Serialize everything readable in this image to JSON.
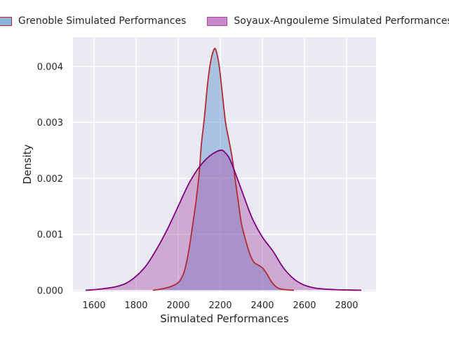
{
  "chart_data": {
    "type": "area",
    "xlabel": "Simulated Performances",
    "ylabel": "Density",
    "xlim": [
      1500,
      2940
    ],
    "ylim": [
      -2e-05,
      0.00452
    ],
    "x_ticks": [
      1600,
      1800,
      2000,
      2200,
      2400,
      2600,
      2800
    ],
    "y_ticks": [
      0.0,
      0.001,
      0.002,
      0.003,
      0.004
    ],
    "y_tick_labels": [
      "0.000",
      "0.001",
      "0.002",
      "0.003",
      "0.004"
    ],
    "grid": true,
    "legend_position": "top",
    "series": [
      {
        "name": "Grenoble Simulated Performances",
        "fill_color": "#4c84c8",
        "line_color": "#b22a33",
        "fill_opacity": 0.4,
        "points": [
          [
            1880,
            0.0
          ],
          [
            1900,
            1e-05
          ],
          [
            1930,
            3e-05
          ],
          [
            1960,
            6e-05
          ],
          [
            1990,
            0.00011
          ],
          [
            2010,
            0.00018
          ],
          [
            2030,
            0.00035
          ],
          [
            2050,
            0.0007
          ],
          [
            2070,
            0.0012
          ],
          [
            2085,
            0.0016
          ],
          [
            2100,
            0.0021
          ],
          [
            2110,
            0.0026
          ],
          [
            2125,
            0.0031
          ],
          [
            2140,
            0.0037
          ],
          [
            2155,
            0.0041
          ],
          [
            2170,
            0.0043
          ],
          [
            2180,
            0.00428
          ],
          [
            2195,
            0.004
          ],
          [
            2210,
            0.0035
          ],
          [
            2225,
            0.003
          ],
          [
            2240,
            0.0027
          ],
          [
            2255,
            0.0024
          ],
          [
            2270,
            0.002
          ],
          [
            2285,
            0.0016
          ],
          [
            2300,
            0.0012
          ],
          [
            2320,
            0.0009
          ],
          [
            2340,
            0.00065
          ],
          [
            2360,
            0.0005
          ],
          [
            2380,
            0.00045
          ],
          [
            2400,
            0.0004
          ],
          [
            2420,
            0.0003
          ],
          [
            2440,
            0.00017
          ],
          [
            2460,
            8e-05
          ],
          [
            2480,
            3e-05
          ],
          [
            2510,
            1e-05
          ],
          [
            2550,
            0.0
          ]
        ]
      },
      {
        "name": "Soyaux-Angouleme Simulated Performances",
        "fill_color": "#a64ca6",
        "line_color": "#800080",
        "fill_opacity": 0.4,
        "points": [
          [
            1560,
            0.0
          ],
          [
            1600,
            1e-05
          ],
          [
            1650,
            3e-05
          ],
          [
            1700,
            6e-05
          ],
          [
            1750,
            0.00012
          ],
          [
            1800,
            0.00025
          ],
          [
            1850,
            0.00045
          ],
          [
            1900,
            0.00075
          ],
          [
            1950,
            0.0011
          ],
          [
            2000,
            0.0015
          ],
          [
            2050,
            0.0019
          ],
          [
            2100,
            0.0022
          ],
          [
            2150,
            0.0024
          ],
          [
            2200,
            0.0025
          ],
          [
            2225,
            0.00245
          ],
          [
            2250,
            0.0023
          ],
          [
            2300,
            0.0018
          ],
          [
            2350,
            0.0013
          ],
          [
            2400,
            0.00095
          ],
          [
            2450,
            0.0007
          ],
          [
            2500,
            0.0004
          ],
          [
            2550,
            0.0002
          ],
          [
            2600,
            9e-05
          ],
          [
            2650,
            4e-05
          ],
          [
            2700,
            2e-05
          ],
          [
            2750,
            1e-05
          ],
          [
            2800,
            5e-06
          ],
          [
            2870,
            0.0
          ]
        ]
      }
    ]
  }
}
